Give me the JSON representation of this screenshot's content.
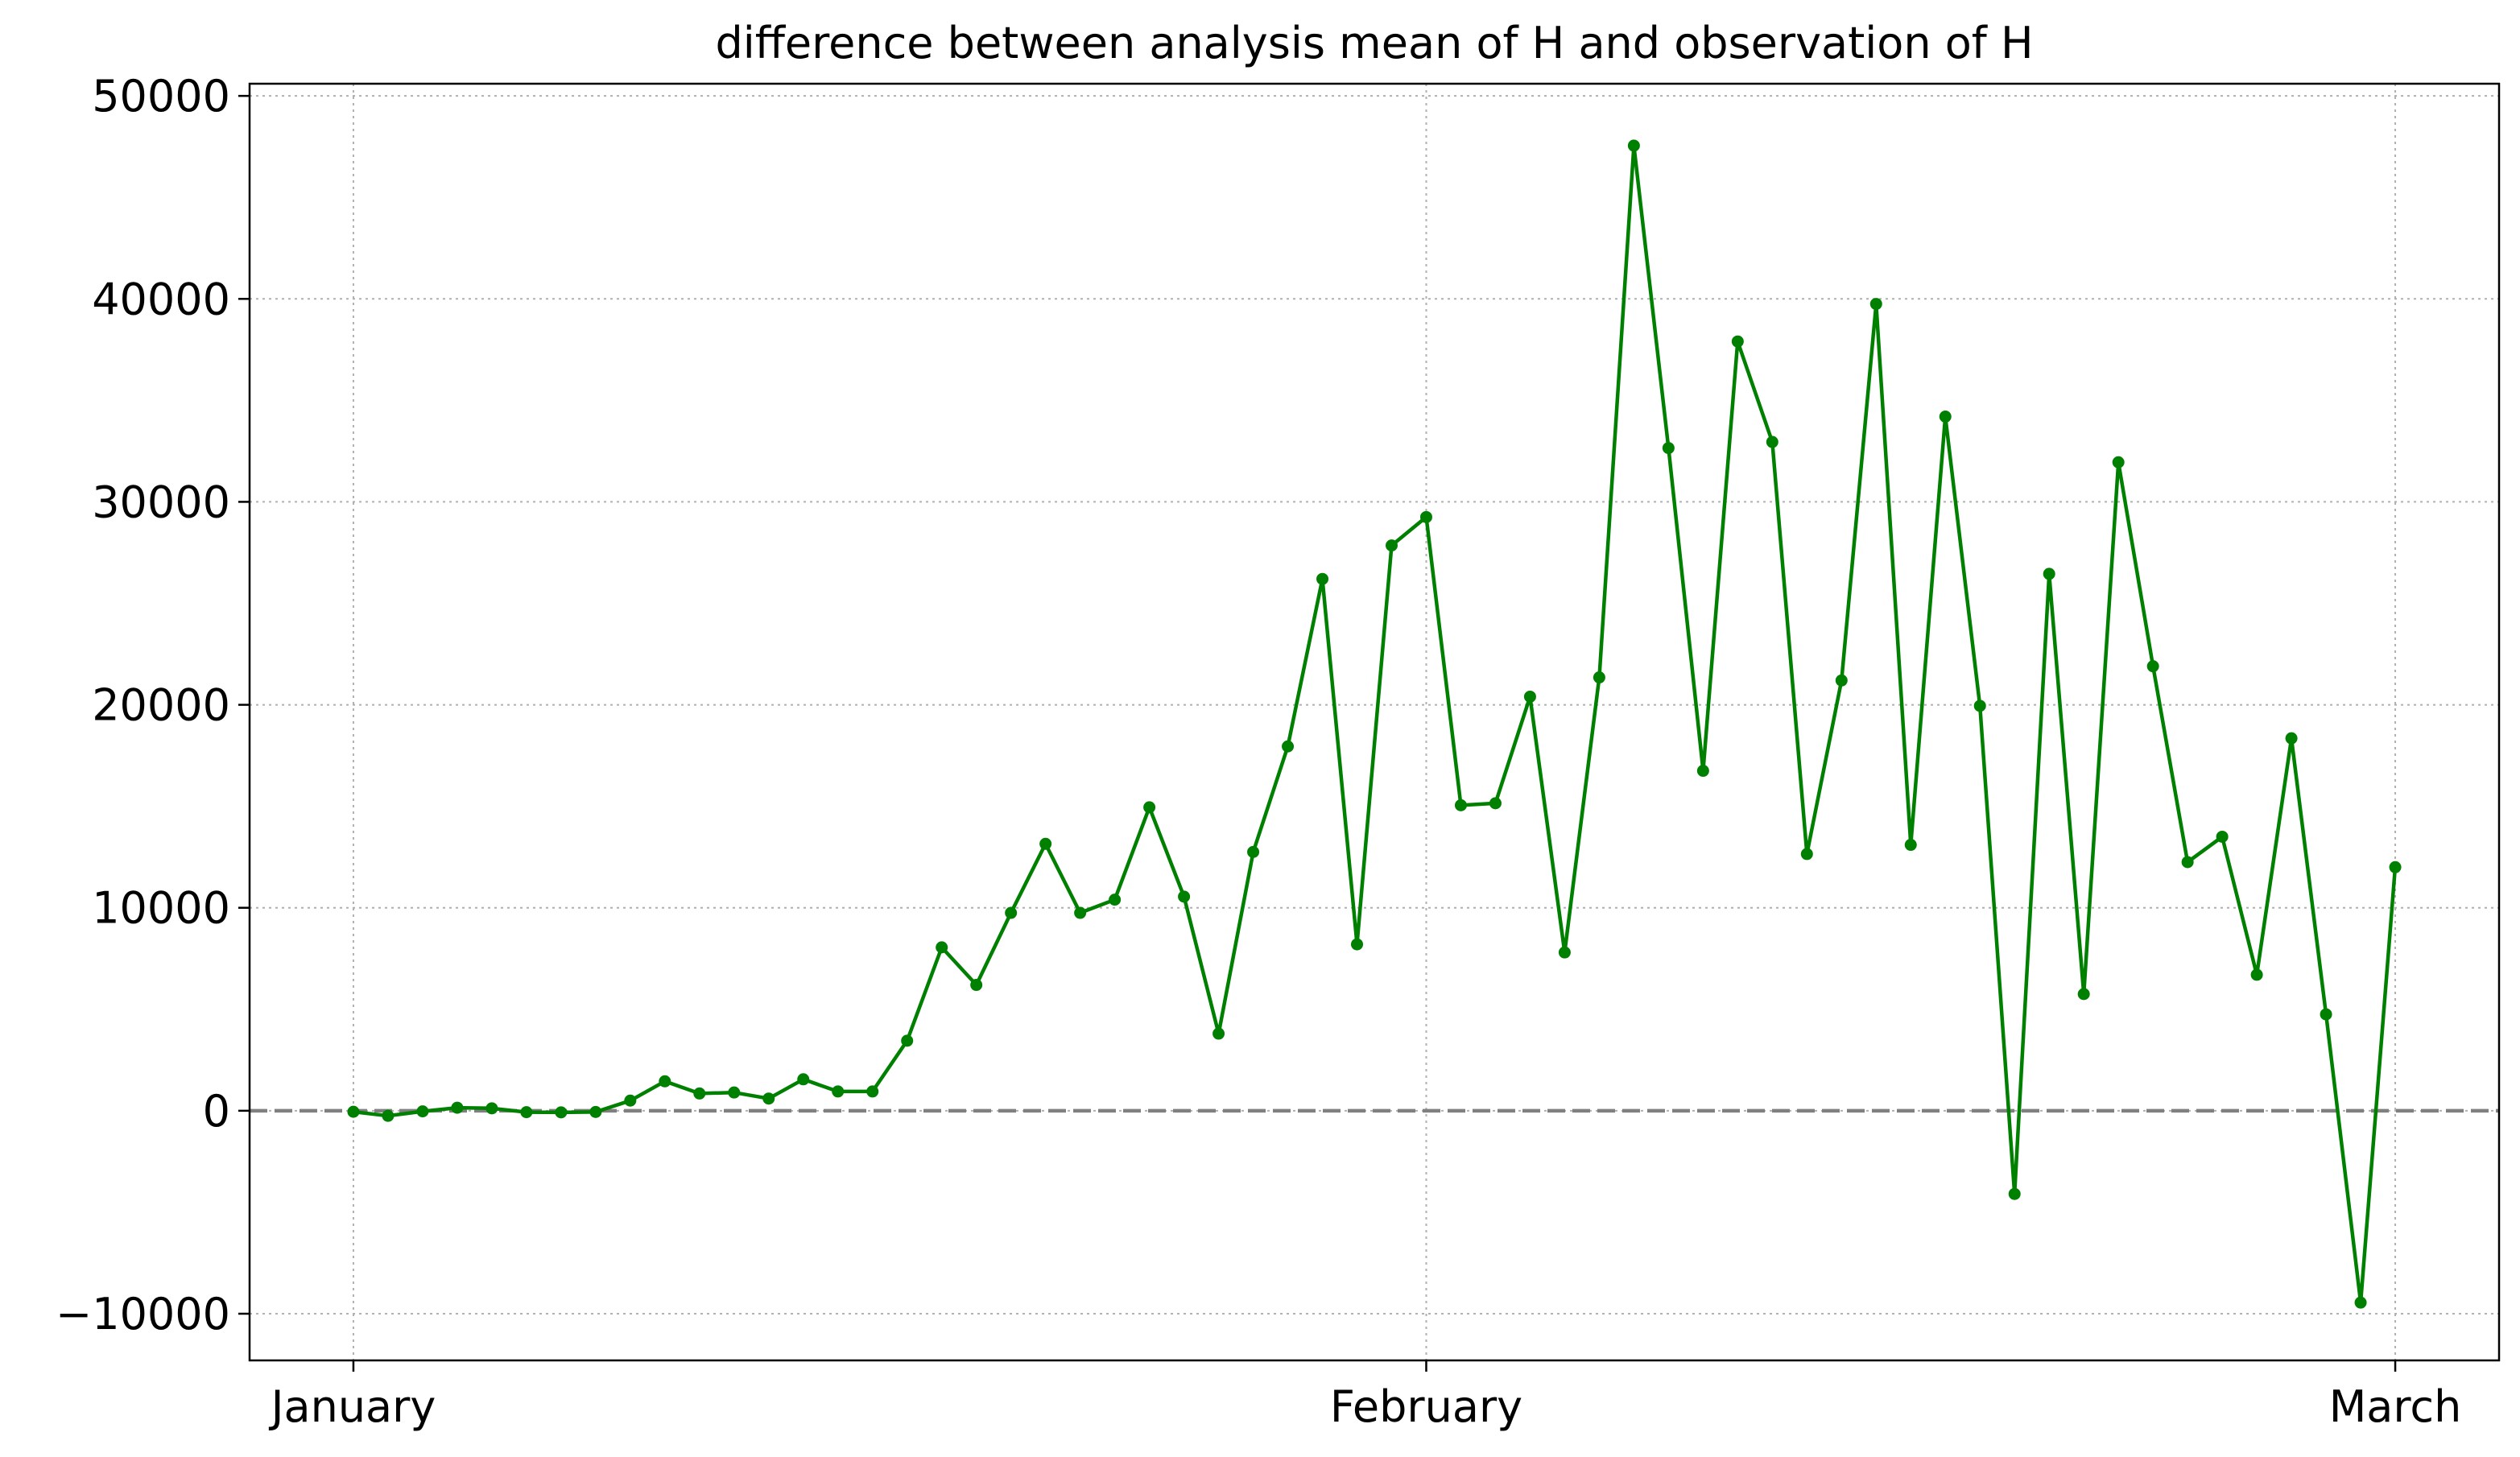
{
  "chart_data": {
    "type": "line",
    "title": "difference between analysis mean of H and observation of H",
    "xlabel": "",
    "ylabel": "",
    "x_tick_labels": [
      "January",
      "February",
      "March"
    ],
    "x_tick_days": [
      1,
      32,
      60
    ],
    "y_ticks": [
      -10000,
      0,
      10000,
      20000,
      30000,
      40000,
      50000
    ],
    "y_tick_labels": [
      "−10000",
      "0",
      "10000",
      "20000",
      "30000",
      "40000",
      "50000"
    ],
    "xlim_days": [
      -2,
      63
    ],
    "ylim": [
      -12300,
      50600
    ],
    "grid": true,
    "reference_line": {
      "y": 0,
      "style": "dashed",
      "color": "#808080"
    },
    "series": [
      {
        "color": "#008000",
        "marker": "circle",
        "x": [
          "Jan 1",
          "Jan 2",
          "Jan 3",
          "Jan 4",
          "Jan 5",
          "Jan 6",
          "Jan 7",
          "Jan 8",
          "Jan 9",
          "Jan 10",
          "Jan 11",
          "Jan 12",
          "Jan 13",
          "Jan 14",
          "Jan 15",
          "Jan 16",
          "Jan 17",
          "Jan 18",
          "Jan 19",
          "Jan 20",
          "Jan 21",
          "Jan 22",
          "Jan 23",
          "Jan 24",
          "Jan 25",
          "Jan 26",
          "Jan 27",
          "Jan 28",
          "Jan 29",
          "Jan 30",
          "Jan 31",
          "Feb 1",
          "Feb 2",
          "Feb 3",
          "Feb 4",
          "Feb 5",
          "Feb 6",
          "Feb 7",
          "Feb 8",
          "Feb 9",
          "Feb 10",
          "Feb 11",
          "Feb 12",
          "Feb 13",
          "Feb 14",
          "Feb 15",
          "Feb 16",
          "Feb 17",
          "Feb 18",
          "Feb 19",
          "Feb 20",
          "Feb 21",
          "Feb 22",
          "Feb 23",
          "Feb 24",
          "Feb 25",
          "Feb 26",
          "Feb 27",
          "Feb 28",
          "Feb 29"
        ],
        "x_days": [
          1,
          2,
          3,
          4,
          5,
          6,
          7,
          8,
          9,
          10,
          11,
          12,
          13,
          14,
          15,
          16,
          17,
          18,
          19,
          20,
          21,
          22,
          23,
          24,
          25,
          26,
          27,
          28,
          29,
          30,
          31,
          32,
          33,
          34,
          35,
          36,
          37,
          38,
          39,
          40,
          41,
          42,
          43,
          44,
          45,
          46,
          47,
          48,
          49,
          50,
          51,
          52,
          53,
          54,
          55,
          56,
          57,
          58,
          59,
          60
        ],
        "y": [
          -50,
          -250,
          -30,
          150,
          120,
          -70,
          -80,
          -60,
          500,
          1450,
          850,
          900,
          600,
          1550,
          950,
          950,
          3450,
          8050,
          6200,
          9750,
          13150,
          9750,
          10400,
          14950,
          10550,
          3800,
          12750,
          17950,
          26200,
          8200,
          27850,
          29250,
          15050,
          15150,
          20400,
          7800,
          21350,
          47550,
          32650,
          16750,
          37900,
          32950,
          12650,
          21200,
          39750,
          13100,
          34200,
          19950,
          -4100,
          26450,
          5750,
          31950,
          21900,
          12250,
          13500,
          6700,
          18350,
          4750,
          -9450,
          12000
        ]
      }
    ]
  }
}
